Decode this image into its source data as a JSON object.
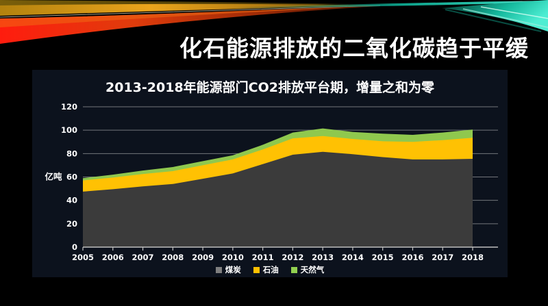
{
  "slide": {
    "title": "化石能源排放的二氧化碳趋于平缓",
    "background_color": "#000000"
  },
  "chart": {
    "title": "2013-2018年能源部门CO2排放平台期，增量之和为零",
    "y_axis_unit": "亿吨"
  },
  "chart_data": {
    "type": "area",
    "stacked": true,
    "title": "2013-2018年能源部门CO2排放平台期，增量之和为零",
    "ylabel": "亿吨",
    "xlabel": "",
    "ylim": [
      0,
      120
    ],
    "y_ticks": [
      0,
      20,
      40,
      60,
      80,
      100,
      120
    ],
    "grid": true,
    "legend_position": "bottom",
    "panel_bg": "#0c121d",
    "gridline_color": "#c9c9c9",
    "axis_color": "#c0c0c0",
    "tick_label_color": "#ffffff",
    "categories": [
      "2005",
      "2006",
      "2007",
      "2008",
      "2009",
      "2010",
      "2011",
      "2012",
      "2013",
      "2014",
      "2015",
      "2016",
      "2017",
      "2018"
    ],
    "series": [
      {
        "name": "煤炭",
        "legend_color": "#7f7f7f",
        "fill": "#3b3b3b",
        "values": [
          47.5,
          49.5,
          52,
          54,
          58.5,
          63,
          71,
          79,
          81.5,
          79.5,
          77,
          75,
          75,
          75.5
        ]
      },
      {
        "name": "石油",
        "legend_color": "#ffc000",
        "fill": "#ffc103",
        "values": [
          9.5,
          10,
          10.5,
          11,
          11.5,
          12,
          12.5,
          14,
          13.5,
          13,
          13.5,
          15,
          16.5,
          18
        ]
      },
      {
        "name": "天然气",
        "legend_color": "#92d050",
        "fill": "#8fc84e",
        "values": [
          2,
          2.5,
          3,
          3.5,
          3.5,
          3.5,
          4,
          5,
          6.5,
          6,
          6.5,
          6,
          6.5,
          7
        ]
      }
    ]
  },
  "ribbon_colors": {
    "red": "#ff1c0e",
    "orange": "#f06a14",
    "amber": "#eaa41c",
    "olive": "#7a5f0a",
    "teal": "#2fe4c8"
  }
}
